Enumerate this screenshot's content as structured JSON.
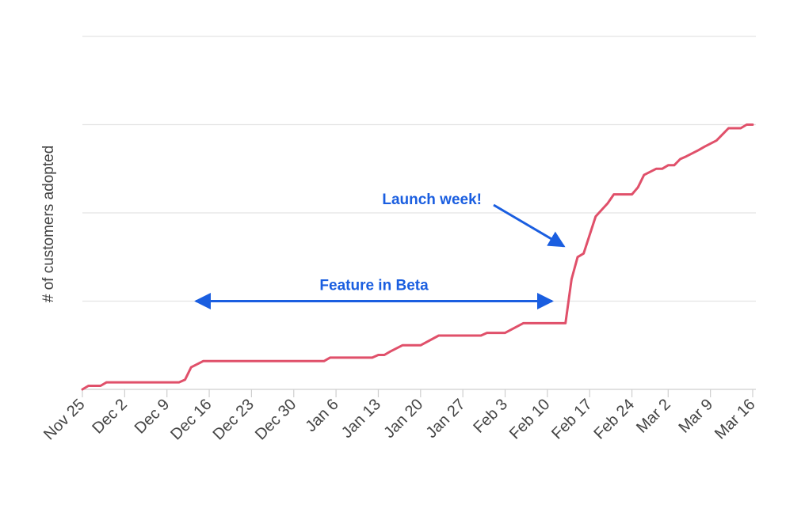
{
  "chart_data": {
    "type": "line",
    "title": "",
    "xlabel": "",
    "ylabel": "# of customers adopted",
    "x_ticks": [
      "Nov 25",
      "Dec 2",
      "Dec 9",
      "Dec 16",
      "Dec 23",
      "Dec 30",
      "Jan 6",
      "Jan 13",
      "Jan 20",
      "Jan 27",
      "Feb 3",
      "Feb 10",
      "Feb 17",
      "Feb 24",
      "Mar 2",
      "Mar 9",
      "Mar 16"
    ],
    "xlim": [
      "Nov 25",
      "Mar 16"
    ],
    "ylim": [
      0,
      4
    ],
    "y_gridlines": [
      1,
      2,
      3,
      4
    ],
    "show_y_tick_labels": false,
    "grid": true,
    "legend": "none",
    "series": [
      {
        "color": "#e0506a",
        "points": [
          [
            "Nov 25",
            0.0
          ],
          [
            "Nov 26",
            0.04
          ],
          [
            "Nov 28",
            0.04
          ],
          [
            "Nov 29",
            0.08
          ],
          [
            "Dec 11",
            0.08
          ],
          [
            "Dec 12",
            0.11
          ],
          [
            "Dec 13",
            0.25
          ],
          [
            "Dec 15",
            0.32
          ],
          [
            "Jan 4",
            0.32
          ],
          [
            "Jan 5",
            0.36
          ],
          [
            "Jan 12",
            0.36
          ],
          [
            "Jan 13",
            0.39
          ],
          [
            "Jan 14",
            0.39
          ],
          [
            "Jan 15",
            0.43
          ],
          [
            "Jan 17",
            0.5
          ],
          [
            "Jan 20",
            0.5
          ],
          [
            "Jan 23",
            0.61
          ],
          [
            "Jan 30",
            0.61
          ],
          [
            "Jan 31",
            0.64
          ],
          [
            "Feb 3",
            0.64
          ],
          [
            "Feb 6",
            0.75
          ],
          [
            "Feb 13",
            0.75
          ],
          [
            "Feb 14",
            1.25
          ],
          [
            "Feb 15",
            1.5
          ],
          [
            "Feb 16",
            1.54
          ],
          [
            "Feb 17",
            1.75
          ],
          [
            "Feb 18",
            1.96
          ],
          [
            "Feb 20",
            2.11
          ],
          [
            "Feb 21",
            2.21
          ],
          [
            "Feb 24",
            2.21
          ],
          [
            "Feb 25",
            2.29
          ],
          [
            "Feb 26",
            2.43
          ],
          [
            "Feb 28",
            2.5
          ],
          [
            "Mar 1",
            2.5
          ],
          [
            "Mar 2",
            2.54
          ],
          [
            "Mar 3",
            2.54
          ],
          [
            "Mar 4",
            2.61
          ],
          [
            "Mar 5",
            2.64
          ],
          [
            "Mar 7",
            2.71
          ],
          [
            "Mar 8",
            2.75
          ],
          [
            "Mar 10",
            2.82
          ],
          [
            "Mar 11",
            2.89
          ],
          [
            "Mar 12",
            2.96
          ],
          [
            "Mar 14",
            2.96
          ],
          [
            "Mar 15",
            3.0
          ],
          [
            "Mar 16",
            3.0
          ]
        ]
      }
    ],
    "annotations": [
      {
        "text": "Feature in Beta",
        "color": "#1a5ee0",
        "style": "double-arrow",
        "from": [
          "Dec 13",
          1
        ],
        "to": [
          "Feb 10",
          1
        ]
      },
      {
        "text": "Launch week!",
        "color": "#1a5ee0",
        "style": "arrow",
        "points_to": [
          "Feb 13",
          1.55
        ]
      }
    ]
  }
}
